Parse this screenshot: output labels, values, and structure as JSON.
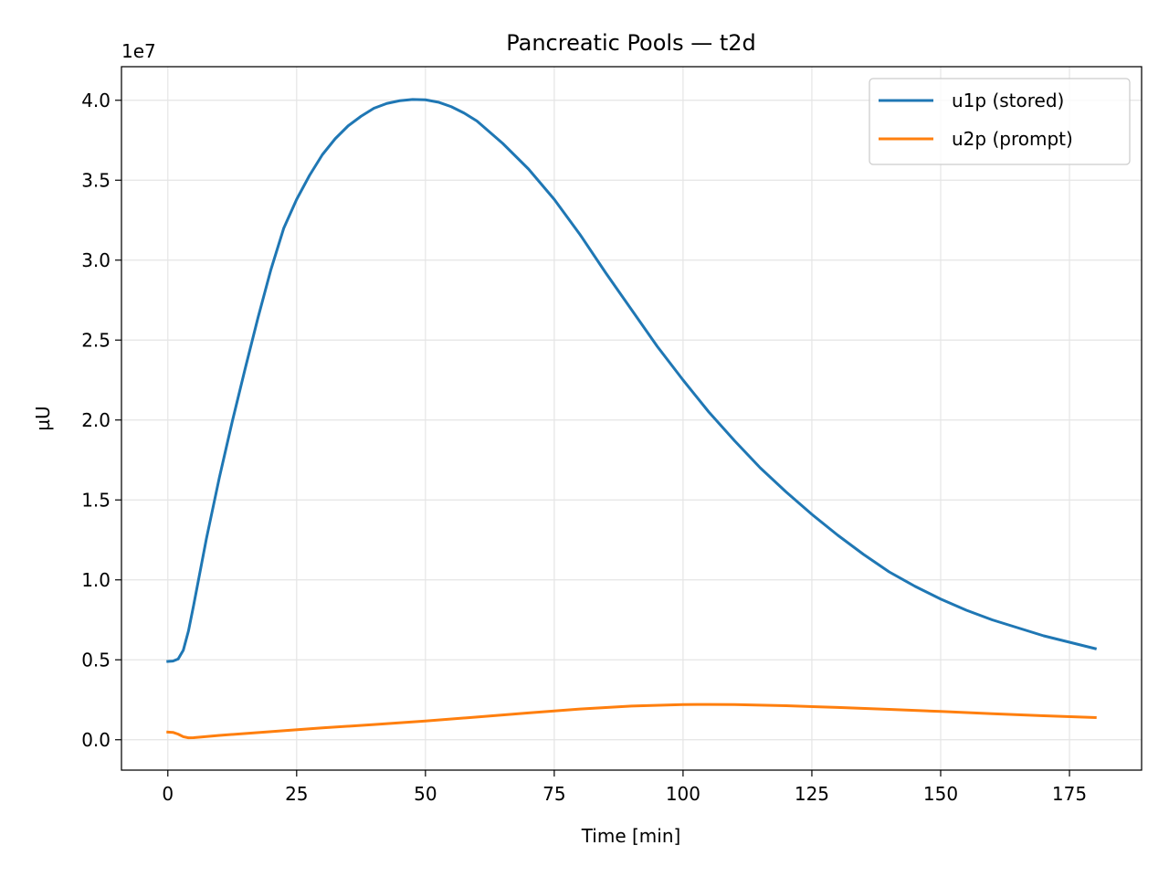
{
  "chart_data": {
    "type": "line",
    "title": "Pancreatic Pools — t2d",
    "xlabel": "Time [min]",
    "ylabel": "µU",
    "y_offset_label": "1e7",
    "xlim": [
      -9,
      189
    ],
    "ylim": [
      -1900000,
      42100000
    ],
    "x_ticks": [
      0,
      25,
      50,
      75,
      100,
      125,
      150,
      175
    ],
    "x_tick_labels": [
      "0",
      "25",
      "50",
      "75",
      "100",
      "125",
      "150",
      "175"
    ],
    "y_ticks": [
      0,
      5000000,
      10000000,
      15000000,
      20000000,
      25000000,
      30000000,
      35000000,
      40000000
    ],
    "y_tick_labels": [
      "0.0",
      "0.5",
      "1.0",
      "1.5",
      "2.0",
      "2.5",
      "3.0",
      "3.5",
      "4.0"
    ],
    "grid": true,
    "legend_position": "top-right",
    "series": [
      {
        "name": "u1p (stored)",
        "color": "#1f77b4",
        "x": [
          0,
          1,
          2,
          3,
          4,
          5,
          7.5,
          10,
          12.5,
          15,
          17.5,
          20,
          22.5,
          25,
          27.5,
          30,
          32.5,
          35,
          37.5,
          40,
          42.5,
          45,
          47.5,
          50,
          52.5,
          55,
          57.5,
          60,
          65,
          70,
          75,
          80,
          85,
          90,
          95,
          100,
          105,
          110,
          115,
          120,
          125,
          130,
          135,
          140,
          145,
          150,
          155,
          160,
          165,
          170,
          175,
          180
        ],
        "y": [
          4900000,
          4920000,
          5050000,
          5600000,
          6800000,
          8400000,
          12600000,
          16400000,
          19900000,
          23200000,
          26400000,
          29400000,
          32000000,
          33800000,
          35300000,
          36600000,
          37600000,
          38400000,
          39000000,
          39500000,
          39800000,
          39970000,
          40050000,
          40030000,
          39880000,
          39600000,
          39200000,
          38700000,
          37300000,
          35700000,
          33800000,
          31600000,
          29200000,
          26900000,
          24600000,
          22500000,
          20500000,
          18700000,
          17000000,
          15500000,
          14100000,
          12800000,
          11600000,
          10500000,
          9600000,
          8800000,
          8100000,
          7500000,
          7000000,
          6500000,
          6100000,
          5700000
        ]
      },
      {
        "name": "u2p (prompt)",
        "color": "#ff7f0e",
        "x": [
          0,
          1,
          2,
          3,
          4,
          5,
          10,
          20,
          30,
          40,
          50,
          60,
          70,
          80,
          90,
          100,
          105,
          110,
          120,
          130,
          140,
          150,
          160,
          170,
          180
        ],
        "y": [
          480000,
          460000,
          350000,
          190000,
          120000,
          130000,
          270000,
          510000,
          740000,
          950000,
          1170000,
          1420000,
          1680000,
          1920000,
          2110000,
          2200000,
          2210000,
          2200000,
          2130000,
          2020000,
          1900000,
          1770000,
          1630000,
          1500000,
          1390000
        ]
      }
    ]
  }
}
